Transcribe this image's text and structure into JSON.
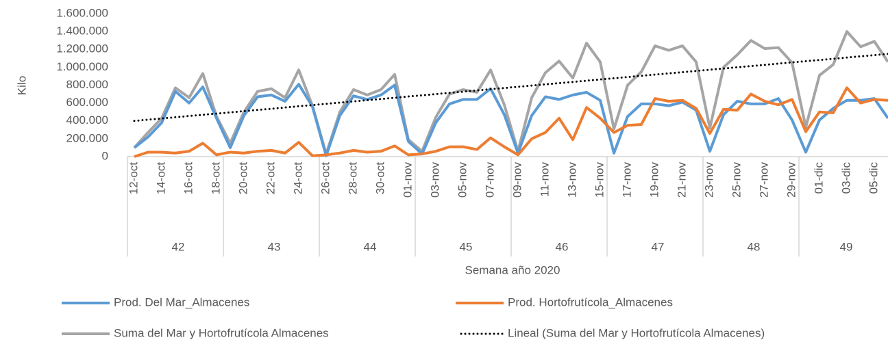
{
  "chart_data": {
    "type": "line",
    "y_label": "Kilo",
    "x_label": "Semana año 2020",
    "categories": [
      "12-oct",
      null,
      "14-oct",
      null,
      "16-oct",
      null,
      "18-oct",
      null,
      "20-oct",
      null,
      "22-oct",
      null,
      "24-oct",
      null,
      "26-oct",
      null,
      "28-oct",
      null,
      "30-oct",
      null,
      "01-nov",
      null,
      "03-nov",
      null,
      "05-nov",
      null,
      "07-nov",
      null,
      "09-nov",
      null,
      "11-nov",
      null,
      "13-nov",
      null,
      "15-nov",
      null,
      "17-nov",
      null,
      "19-nov",
      null,
      "21-nov",
      null,
      "23-nov",
      null,
      "25-nov",
      null,
      "27-nov",
      null,
      "29-nov",
      null,
      "01-dic",
      null,
      "03-dic",
      null,
      "05-dic",
      null
    ],
    "weeks": [
      "42",
      "43",
      "44",
      "45",
      "46",
      "47",
      "48",
      "49"
    ],
    "series": [
      {
        "name": "Prod. Del Mar_Almacenes",
        "color": "#5b9bd5",
        "style": "solid",
        "values": [
          100000,
          220000,
          380000,
          730000,
          600000,
          780000,
          430000,
          100000,
          460000,
          670000,
          690000,
          620000,
          810000,
          560000,
          10000,
          460000,
          680000,
          640000,
          690000,
          800000,
          170000,
          30000,
          380000,
          590000,
          640000,
          640000,
          760000,
          470000,
          40000,
          460000,
          670000,
          640000,
          690000,
          720000,
          630000,
          40000,
          450000,
          590000,
          590000,
          570000,
          610000,
          520000,
          60000,
          470000,
          620000,
          590000,
          590000,
          650000,
          410000,
          50000,
          410000,
          540000,
          630000,
          630000,
          650000,
          430000
        ]
      },
      {
        "name": "Prod. Hortofrutícola_Almacenes",
        "color": "#ed7d31",
        "style": "solid",
        "values": [
          0,
          50000,
          50000,
          40000,
          60000,
          150000,
          20000,
          50000,
          40000,
          60000,
          70000,
          40000,
          160000,
          10000,
          20000,
          40000,
          70000,
          50000,
          60000,
          120000,
          20000,
          30000,
          60000,
          110000,
          110000,
          80000,
          210000,
          110000,
          20000,
          200000,
          270000,
          430000,
          190000,
          550000,
          430000,
          270000,
          350000,
          360000,
          650000,
          620000,
          630000,
          540000,
          260000,
          530000,
          520000,
          700000,
          620000,
          580000,
          640000,
          280000,
          500000,
          490000,
          770000,
          600000,
          640000,
          630000
        ]
      },
      {
        "name": "Suma del Mar y Hortofrutícola  Almacenes",
        "color": "#a5a5a5",
        "style": "solid",
        "values": [
          100000,
          270000,
          430000,
          770000,
          660000,
          930000,
          450000,
          150000,
          500000,
          730000,
          760000,
          660000,
          970000,
          570000,
          30000,
          500000,
          750000,
          690000,
          750000,
          920000,
          190000,
          60000,
          440000,
          700000,
          750000,
          720000,
          970000,
          580000,
          60000,
          660000,
          940000,
          1070000,
          880000,
          1270000,
          1060000,
          310000,
          800000,
          950000,
          1240000,
          1190000,
          1240000,
          1060000,
          320000,
          1000000,
          1140000,
          1300000,
          1210000,
          1220000,
          1050000,
          330000,
          910000,
          1030000,
          1400000,
          1230000,
          1290000,
          1060000
        ]
      },
      {
        "name": "Lineal (Suma del Mar y Hortofrutícola  Almacenes)",
        "color": "#000000",
        "style": "dotted",
        "values": [
          400000,
          414000,
          427000,
          441000,
          455000,
          468000,
          482000,
          495000,
          509000,
          523000,
          536000,
          550000,
          564000,
          577000,
          591000,
          605000,
          618000,
          632000,
          645000,
          659000,
          673000,
          686000,
          700000,
          714000,
          727000,
          741000,
          755000,
          768000,
          782000,
          795000,
          809000,
          823000,
          836000,
          850000,
          864000,
          877000,
          891000,
          905000,
          918000,
          932000,
          945000,
          959000,
          973000,
          986000,
          1000000,
          1014000,
          1027000,
          1041000,
          1055000,
          1068000,
          1082000,
          1095000,
          1109000,
          1123000,
          1136000,
          1150000
        ]
      }
    ],
    "ylim": [
      0,
      1600000
    ],
    "yticks": [
      0,
      {
        "value": 200000,
        "label": "200.000"
      },
      {
        "value": 400000,
        "label": "400.000"
      },
      {
        "value": 600000,
        "label": "600.000"
      },
      {
        "value": 800000,
        "label": "800.000"
      },
      {
        "value": 1000000,
        "label": "1.000.000"
      },
      {
        "value": 1200000,
        "label": "1.200.000"
      },
      {
        "value": 1400000,
        "label": "1.400.000"
      },
      {
        "value": 1600000,
        "label": "1.600.000"
      }
    ],
    "grid": false,
    "legend": "bottom"
  }
}
